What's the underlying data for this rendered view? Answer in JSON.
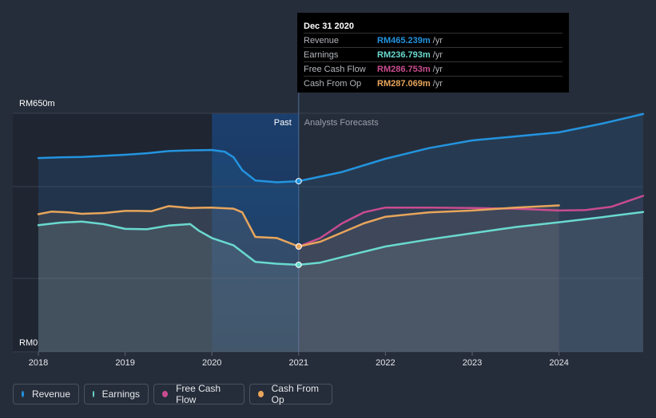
{
  "tooltip": {
    "date": "Dec 31 2020",
    "rows": [
      {
        "name": "Revenue",
        "value": "RM465.239m",
        "unit": "/yr",
        "color": "#2394df"
      },
      {
        "name": "Earnings",
        "value": "RM236.793m",
        "unit": "/yr",
        "color": "#6ad9cf"
      },
      {
        "name": "Free Cash Flow",
        "value": "RM286.753m",
        "unit": "/yr",
        "color": "#c94c8f"
      },
      {
        "name": "Cash From Op",
        "value": "RM287.069m",
        "unit": "/yr",
        "color": "#e8a55c"
      }
    ]
  },
  "legend": [
    {
      "label": "Revenue",
      "color": "#2394df"
    },
    {
      "label": "Earnings",
      "color": "#6ad9cf"
    },
    {
      "label": "Free Cash Flow",
      "color": "#c94c8f"
    },
    {
      "label": "Cash From Op",
      "color": "#e8a55c"
    }
  ],
  "chart_data": {
    "type": "area",
    "y_top_label": "RM650m",
    "y_bottom_label": "RM0",
    "ylim": [
      0,
      650
    ],
    "xlim": [
      2018,
      2024.97
    ],
    "x_ticks": [
      "2018",
      "2019",
      "2020",
      "2021",
      "2022",
      "2023",
      "2024"
    ],
    "past_label": "Past",
    "forecast_label": "Analysts Forecasts",
    "divider_x": 2021.0,
    "highlight_start": 2020.0,
    "highlight_marker_x": 2021.0,
    "grid": true,
    "series": [
      {
        "name": "Revenue",
        "color": "#2394df",
        "x": [
          2018.0,
          2018.25,
          2018.5,
          2018.75,
          2019.0,
          2019.25,
          2019.5,
          2019.75,
          2020.0,
          2020.15,
          2020.25,
          2020.35,
          2020.5,
          2020.75,
          2021.0,
          2021.5,
          2022.0,
          2022.5,
          2023.0,
          2023.5,
          2024.0,
          2024.5,
          2024.97
        ],
        "y": [
          528,
          530,
          531,
          534,
          537,
          541,
          547,
          549,
          550,
          545,
          530,
          495,
          467,
          462,
          465,
          490,
          526,
          555,
          576,
          587,
          598,
          622,
          648
        ]
      },
      {
        "name": "Earnings",
        "color": "#6ad9cf",
        "x": [
          2018.0,
          2018.25,
          2018.5,
          2018.75,
          2019.0,
          2019.25,
          2019.5,
          2019.75,
          2019.85,
          2020.0,
          2020.25,
          2020.5,
          2020.75,
          2021.0,
          2021.25,
          2021.5,
          2022.0,
          2022.5,
          2023.0,
          2023.5,
          2024.0,
          2024.5,
          2024.97
        ],
        "y": [
          345,
          352,
          355,
          348,
          335,
          334,
          344,
          348,
          330,
          310,
          290,
          245,
          240,
          237,
          243,
          258,
          287,
          306,
          323,
          340,
          353,
          367,
          381
        ]
      },
      {
        "name": "Free Cash Flow",
        "color": "#c94c8f",
        "x": [
          2021.0,
          2021.25,
          2021.5,
          2021.75,
          2022.0,
          2022.5,
          2023.0,
          2023.5,
          2024.0,
          2024.3,
          2024.6,
          2024.97
        ],
        "y": [
          287,
          310,
          350,
          380,
          393,
          393,
          392,
          390,
          385,
          386,
          395,
          425
        ]
      },
      {
        "name": "Cash From Op",
        "color": "#e8a55c",
        "x": [
          2018.0,
          2018.15,
          2018.35,
          2018.5,
          2018.75,
          2019.0,
          2019.15,
          2019.3,
          2019.5,
          2019.75,
          2020.0,
          2020.25,
          2020.35,
          2020.5,
          2020.75,
          2021.0,
          2021.25,
          2021.5,
          2021.75,
          2022.0,
          2022.5,
          2023.0,
          2023.5,
          2024.0
        ],
        "y": [
          375,
          382,
          380,
          376,
          378,
          384,
          384,
          383,
          397,
          392,
          393,
          390,
          380,
          313,
          310,
          287,
          300,
          325,
          350,
          368,
          380,
          385,
          393,
          399
        ]
      }
    ]
  }
}
